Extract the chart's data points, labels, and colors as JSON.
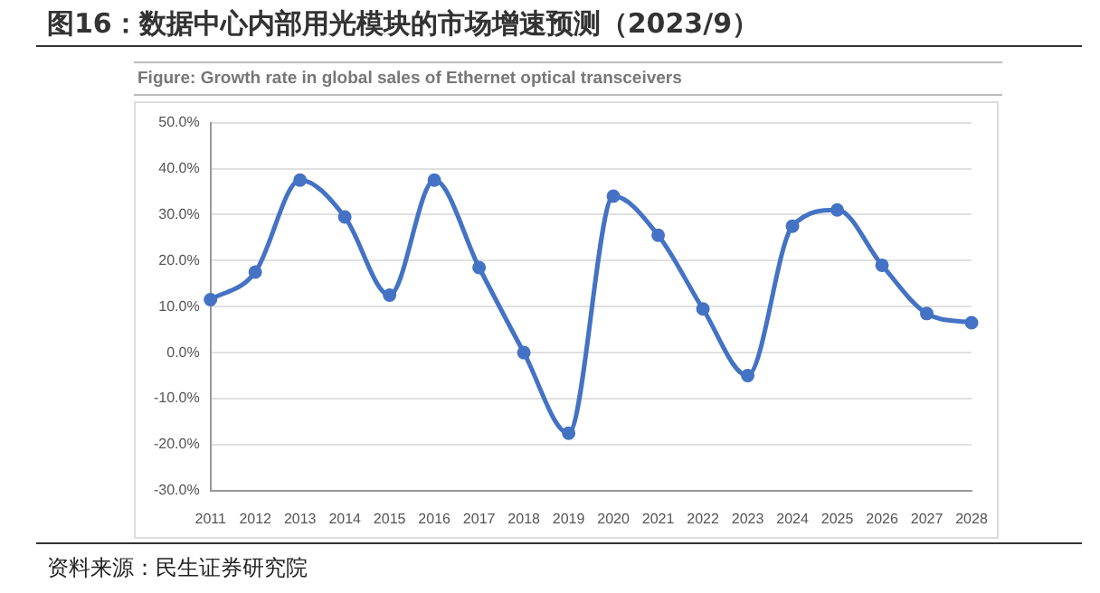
{
  "chart_data": {
    "type": "line",
    "title": "图16：数据中心内部用光模块的市场增速预测（2023/9）",
    "subtitle": "Figure: Growth rate in global sales of Ethernet optical transceivers",
    "annotations": [
      "资料来源：民生证券研究院"
    ],
    "categories": [
      "2011",
      "2012",
      "2013",
      "2014",
      "2015",
      "2016",
      "2017",
      "2018",
      "2019",
      "2020",
      "2021",
      "2022",
      "2023",
      "2024",
      "2025",
      "2026",
      "2027",
      "2028"
    ],
    "series": [
      {
        "color": "#4472c4",
        "values": [
          11.5,
          17.5,
          37.5,
          29.5,
          12.5,
          37.5,
          18.5,
          0,
          -17.5,
          34,
          25.5,
          9.5,
          -5,
          27.5,
          31,
          19,
          8.5,
          6.5
        ]
      }
    ],
    "ylim": [
      -30,
      50
    ],
    "yticks": [
      {
        "value": -30,
        "label": "-30.0%"
      },
      {
        "value": -20,
        "label": "-20.0%"
      },
      {
        "value": -10,
        "label": "-10.0%"
      },
      {
        "value": 0,
        "label": "0.0%"
      },
      {
        "value": 10,
        "label": "10.0%"
      },
      {
        "value": 20,
        "label": "20.0%"
      },
      {
        "value": 30,
        "label": "30.0%"
      },
      {
        "value": 40,
        "label": "40.0%"
      },
      {
        "value": 50,
        "label": "50.0%"
      }
    ],
    "grid": "y",
    "legend": false,
    "marker": "circle",
    "line_style": "solid"
  }
}
